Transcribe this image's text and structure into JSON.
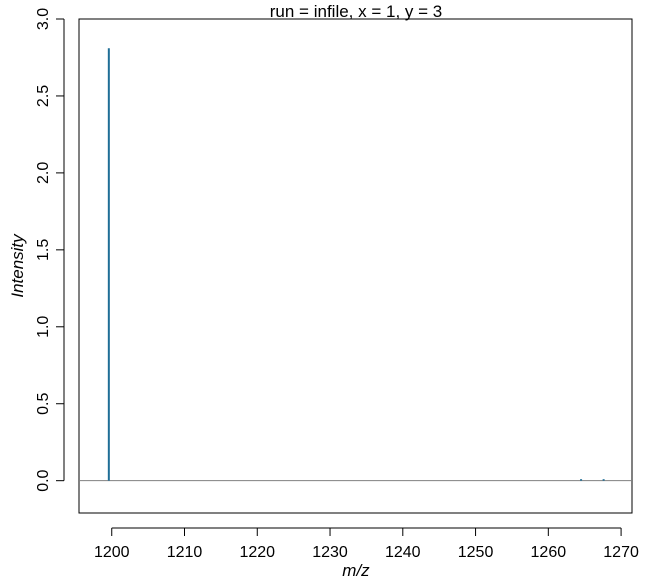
{
  "chart_data": {
    "type": "line",
    "title": "run = infile, x = 1, y = 3",
    "xlabel": "m/z",
    "ylabel": "Intensity",
    "xlim": [
      1195.5,
      1271.5
    ],
    "ylim": [
      -0.21,
      3.0
    ],
    "x_ticks": [
      1200,
      1210,
      1220,
      1230,
      1240,
      1250,
      1260,
      1270
    ],
    "x_tick_labels": [
      "1200",
      "1210",
      "1220",
      "1230",
      "1240",
      "1250",
      "1260",
      "1270"
    ],
    "y_ticks": [
      0.0,
      0.5,
      1.0,
      1.5,
      2.0,
      2.5,
      3.0
    ],
    "y_tick_labels": [
      "0.0",
      "0.5",
      "1.0",
      "1.5",
      "2.0",
      "2.5",
      "3.0"
    ],
    "series": [
      {
        "points": [
          {
            "x": 1199.6,
            "y": 2.81
          },
          {
            "x": 1264.5,
            "y": 0.004
          },
          {
            "x": 1267.6,
            "y": 0.004
          }
        ]
      }
    ],
    "baseline": 0,
    "grid": false,
    "colors": {
      "series": "#1f6e96",
      "baseline": "#808080",
      "axes": "#000000"
    }
  }
}
